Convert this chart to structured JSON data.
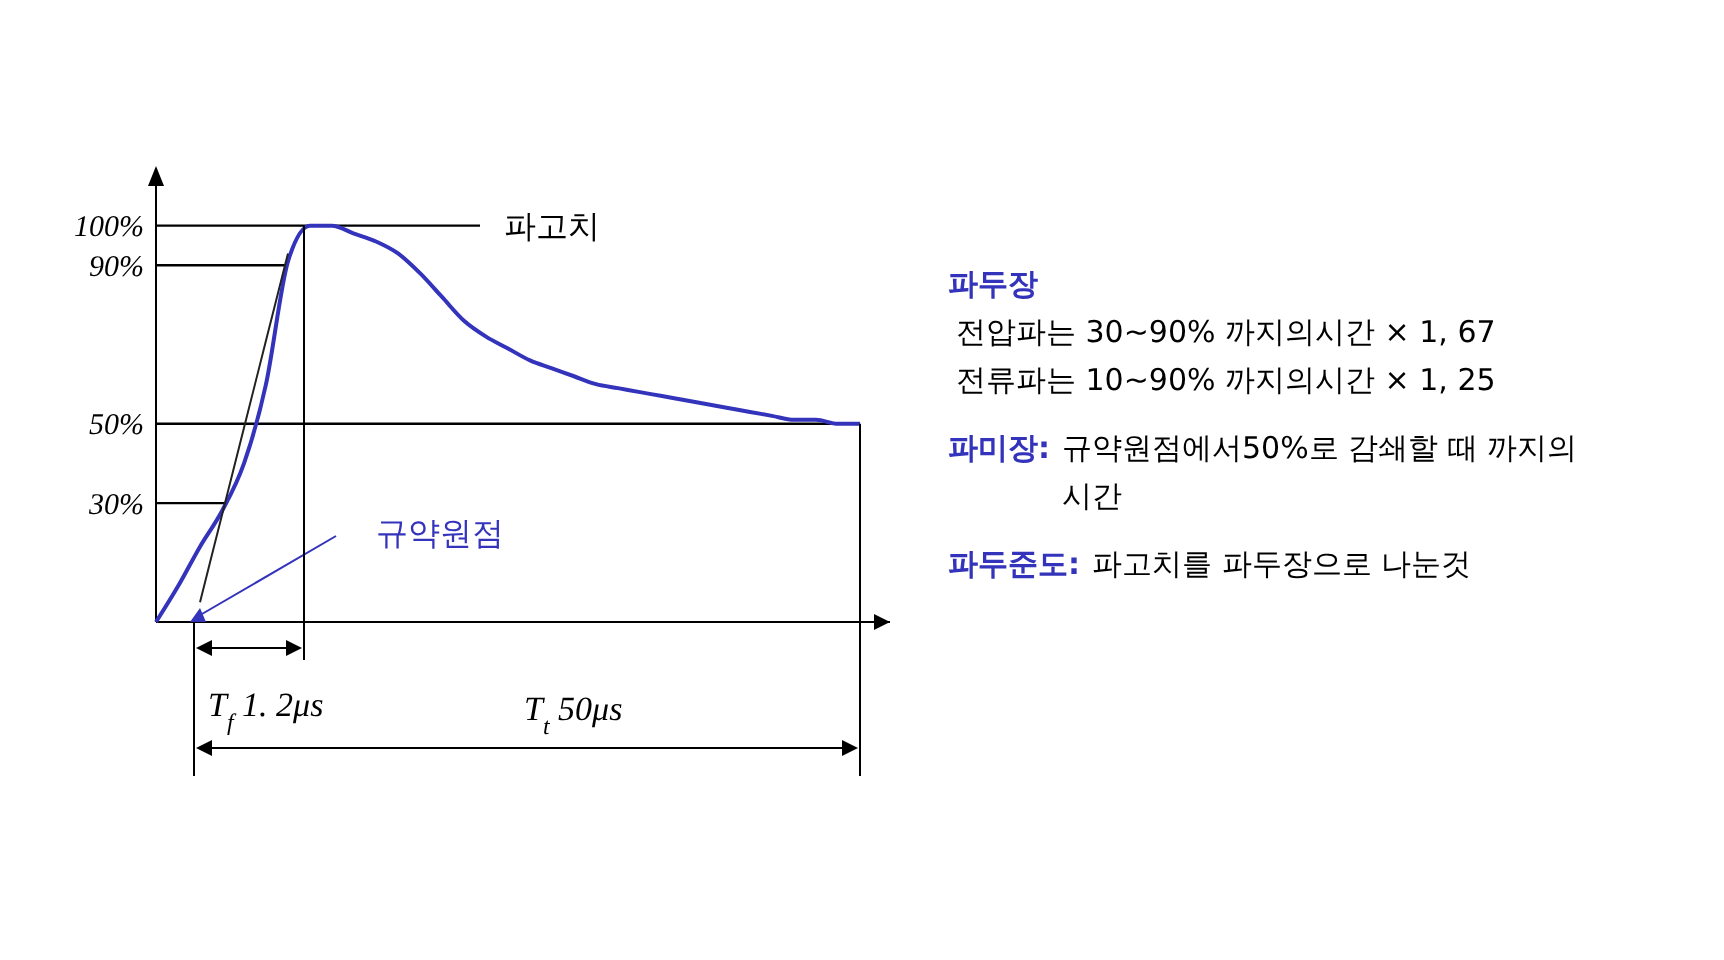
{
  "chart_data": {
    "type": "line",
    "categories": [
      null,
      null,
      null,
      null,
      null,
      null,
      null,
      null,
      null,
      null,
      null,
      null,
      null,
      null,
      null,
      null,
      null,
      null,
      null,
      null,
      null,
      null,
      null,
      null,
      null,
      null,
      null,
      null,
      null,
      null,
      null,
      null,
      null
    ],
    "series": [
      {
        "color": "#3333bb",
        "values": [
          0,
          9,
          19,
          28,
          40,
          60,
          91,
          100,
          100,
          98,
          96,
          93,
          88,
          82,
          76,
          72,
          69,
          66,
          64,
          62,
          60,
          59,
          58,
          57,
          56,
          55,
          54,
          53,
          52,
          51,
          51,
          50,
          50
        ]
      },
      {
        "color": "#222222",
        "values": [
          null,
          null,
          5,
          27,
          49,
          71,
          93,
          null,
          null,
          null,
          null,
          null,
          null,
          null,
          null,
          null,
          null,
          null,
          null,
          null,
          null,
          null,
          null,
          null,
          null,
          null,
          null,
          null,
          null,
          null,
          null,
          null,
          null
        ]
      }
    ],
    "ylim": [
      0,
      110
    ],
    "yticks": [
      {
        "value": 30,
        "label": "30%"
      },
      {
        "value": 50,
        "label": "50%"
      },
      {
        "value": 90,
        "label": "90%"
      },
      {
        "value": 100,
        "label": "100%"
      }
    ],
    "tick_labels": "y",
    "grid": false,
    "ref_lines": [
      {
        "axis": "y",
        "value": 100,
        "label": "파고치"
      },
      {
        "axis": "y",
        "value": 90
      },
      {
        "axis": "y",
        "value": 50
      },
      {
        "axis": "y",
        "value": 30
      }
    ],
    "annotations": [
      "규약원점",
      "T$_{f}$ 1. 2μs",
      "T$_{t}$ 50μs",
      "파두장",
      "전압파는 30~90% 까지의시간 × 1, 67",
      "전류파는 10~90% 까지의시간 × 1, 25",
      "파미장: 규약원점에서50%로 감쇄할 때 까지의 시간",
      "파두준도: 파고치를 파두장으로 나눈것"
    ]
  }
}
